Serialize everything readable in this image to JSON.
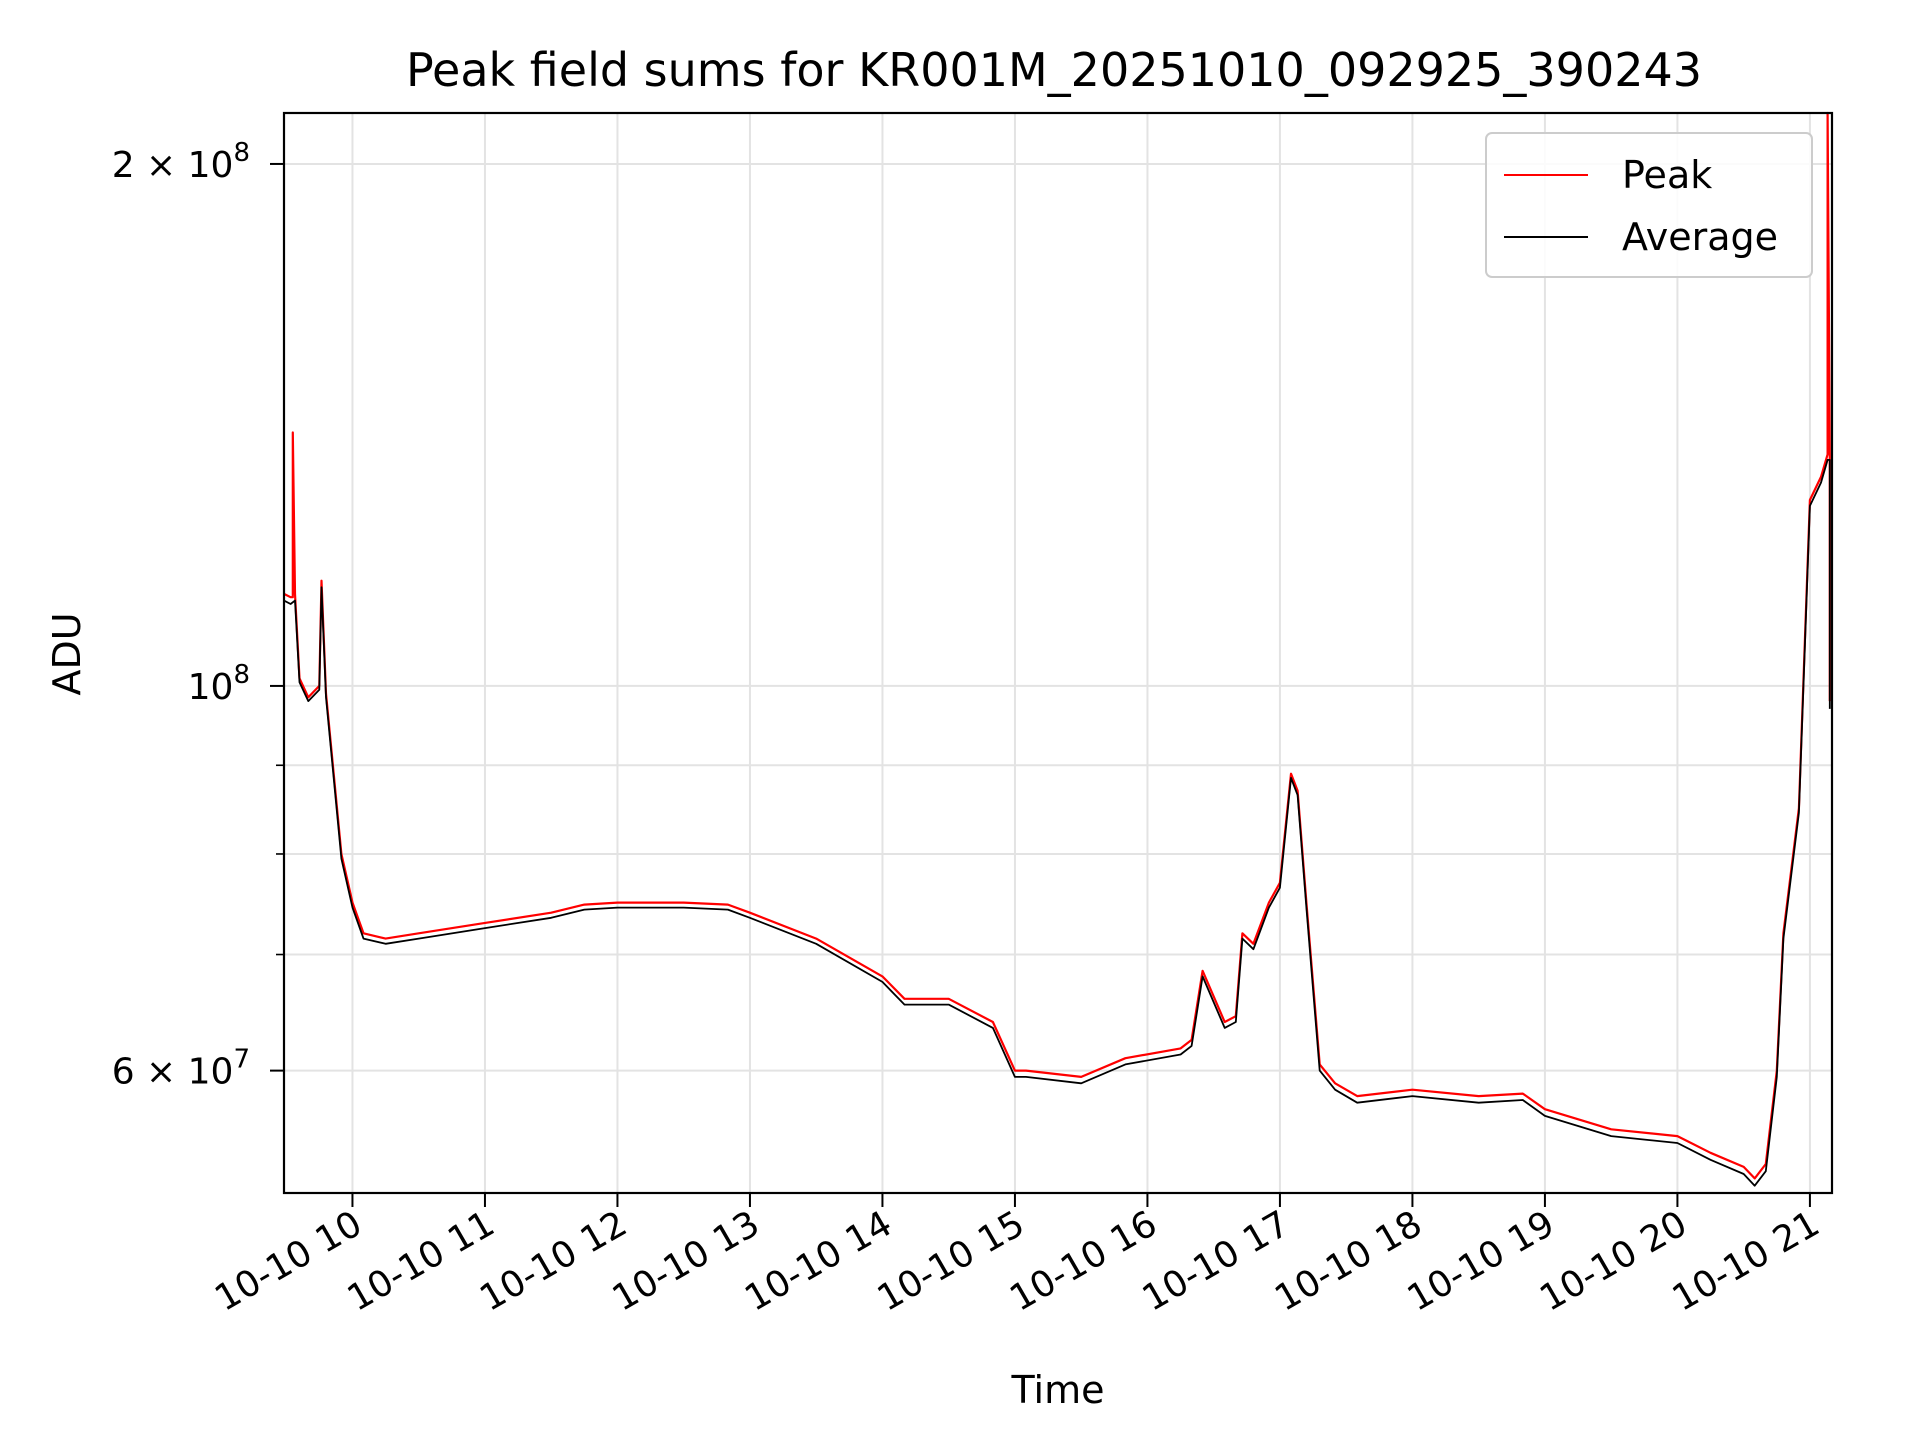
{
  "chart_data": {
    "type": "line",
    "title": "Peak field sums for KR001M_20251010_092925_390243",
    "xlabel": "Time",
    "ylabel": "ADU",
    "yscale": "log",
    "ylim": [
      51000000,
      214000000
    ],
    "xlim": [
      "2025-10-10 09:29",
      "2025-10-10 21:10"
    ],
    "grid": true,
    "legend": "top-right",
    "x_ticks": [
      {
        "value": "2025-10-10 10:00",
        "label": "10-10 10"
      },
      {
        "value": "2025-10-10 11:00",
        "label": "10-10 11"
      },
      {
        "value": "2025-10-10 12:00",
        "label": "10-10 12"
      },
      {
        "value": "2025-10-10 13:00",
        "label": "10-10 13"
      },
      {
        "value": "2025-10-10 14:00",
        "label": "10-10 14"
      },
      {
        "value": "2025-10-10 15:00",
        "label": "10-10 15"
      },
      {
        "value": "2025-10-10 16:00",
        "label": "10-10 16"
      },
      {
        "value": "2025-10-10 17:00",
        "label": "10-10 17"
      },
      {
        "value": "2025-10-10 18:00",
        "label": "10-10 18"
      },
      {
        "value": "2025-10-10 19:00",
        "label": "10-10 19"
      },
      {
        "value": "2025-10-10 20:00",
        "label": "10-10 20"
      },
      {
        "value": "2025-10-10 21:00",
        "label": "10-10 21"
      }
    ],
    "y_major_ticks": [
      {
        "value": 60000000,
        "base": "6 × 10",
        "exp": "7"
      },
      {
        "value": 100000000,
        "base": "10",
        "exp": "8"
      },
      {
        "value": 200000000,
        "base": "2 × 10",
        "exp": "8"
      }
    ],
    "y_minor_ticks": [
      70000000,
      80000000,
      90000000
    ],
    "series": [
      {
        "name": "Peak",
        "color": "#ff0000",
        "x": [
          "2025-10-10 09:29",
          "2025-10-10 09:32",
          "2025-10-10 09:33",
          "2025-10-10 09:33",
          "2025-10-10 09:34",
          "2025-10-10 09:36",
          "2025-10-10 09:40",
          "2025-10-10 09:45",
          "2025-10-10 09:46",
          "2025-10-10 09:48",
          "2025-10-10 09:55",
          "2025-10-10 10:00",
          "2025-10-10 10:05",
          "2025-10-10 10:15",
          "2025-10-10 10:30",
          "2025-10-10 11:00",
          "2025-10-10 11:30",
          "2025-10-10 11:45",
          "2025-10-10 12:00",
          "2025-10-10 12:30",
          "2025-10-10 12:50",
          "2025-10-10 13:00",
          "2025-10-10 13:30",
          "2025-10-10 14:00",
          "2025-10-10 14:10",
          "2025-10-10 14:30",
          "2025-10-10 14:50",
          "2025-10-10 15:00",
          "2025-10-10 15:05",
          "2025-10-10 15:30",
          "2025-10-10 15:50",
          "2025-10-10 16:15",
          "2025-10-10 16:20",
          "2025-10-10 16:25",
          "2025-10-10 16:35",
          "2025-10-10 16:40",
          "2025-10-10 16:43",
          "2025-10-10 16:48",
          "2025-10-10 16:55",
          "2025-10-10 17:00",
          "2025-10-10 17:05",
          "2025-10-10 17:08",
          "2025-10-10 17:12",
          "2025-10-10 17:18",
          "2025-10-10 17:25",
          "2025-10-10 17:35",
          "2025-10-10 18:00",
          "2025-10-10 18:30",
          "2025-10-10 18:50",
          "2025-10-10 19:00",
          "2025-10-10 19:30",
          "2025-10-10 20:00",
          "2025-10-10 20:15",
          "2025-10-10 20:30",
          "2025-10-10 20:35",
          "2025-10-10 20:40",
          "2025-10-10 20:45",
          "2025-10-10 20:48",
          "2025-10-10 20:55",
          "2025-10-10 21:00",
          "2025-10-10 21:05",
          "2025-10-10 21:08",
          "2025-10-10 21:08",
          "2025-10-10 21:09",
          "2025-10-10 21:09"
        ],
        "y": [
          113000000,
          112500000,
          112500000,
          140000000,
          113000000,
          101000000,
          98500000,
          100000000,
          115000000,
          99000000,
          80000000,
          75000000,
          72000000,
          71500000,
          72000000,
          73000000,
          74000000,
          74800000,
          75000000,
          75000000,
          74800000,
          74000000,
          71500000,
          68000000,
          66000000,
          66000000,
          64000000,
          60000000,
          60000000,
          59500000,
          61000000,
          61800000,
          62500000,
          68500000,
          64000000,
          64500000,
          72000000,
          71000000,
          75000000,
          77000000,
          89000000,
          87000000,
          75000000,
          60500000,
          59000000,
          58000000,
          58500000,
          58000000,
          58200000,
          57000000,
          55500000,
          55000000,
          53800000,
          52800000,
          52000000,
          53000000,
          60000000,
          72000000,
          85000000,
          128000000,
          132000000,
          136000000,
          214000000,
          136000000,
          98000000
        ]
      },
      {
        "name": "Average",
        "color": "#000000",
        "x": [
          "2025-10-10 09:29",
          "2025-10-10 09:32",
          "2025-10-10 09:34",
          "2025-10-10 09:36",
          "2025-10-10 09:40",
          "2025-10-10 09:45",
          "2025-10-10 09:46",
          "2025-10-10 09:48",
          "2025-10-10 09:55",
          "2025-10-10 10:00",
          "2025-10-10 10:05",
          "2025-10-10 10:15",
          "2025-10-10 10:30",
          "2025-10-10 11:00",
          "2025-10-10 11:30",
          "2025-10-10 11:45",
          "2025-10-10 12:00",
          "2025-10-10 12:30",
          "2025-10-10 12:50",
          "2025-10-10 13:00",
          "2025-10-10 13:30",
          "2025-10-10 14:00",
          "2025-10-10 14:10",
          "2025-10-10 14:30",
          "2025-10-10 14:50",
          "2025-10-10 15:00",
          "2025-10-10 15:05",
          "2025-10-10 15:30",
          "2025-10-10 15:50",
          "2025-10-10 16:15",
          "2025-10-10 16:20",
          "2025-10-10 16:25",
          "2025-10-10 16:35",
          "2025-10-10 16:40",
          "2025-10-10 16:43",
          "2025-10-10 16:48",
          "2025-10-10 16:55",
          "2025-10-10 17:00",
          "2025-10-10 17:05",
          "2025-10-10 17:08",
          "2025-10-10 17:12",
          "2025-10-10 17:18",
          "2025-10-10 17:25",
          "2025-10-10 17:35",
          "2025-10-10 18:00",
          "2025-10-10 18:30",
          "2025-10-10 18:50",
          "2025-10-10 19:00",
          "2025-10-10 19:30",
          "2025-10-10 20:00",
          "2025-10-10 20:15",
          "2025-10-10 20:30",
          "2025-10-10 20:35",
          "2025-10-10 20:40",
          "2025-10-10 20:45",
          "2025-10-10 20:48",
          "2025-10-10 20:55",
          "2025-10-10 21:00",
          "2025-10-10 21:05",
          "2025-10-10 21:08",
          "2025-10-10 21:09",
          "2025-10-10 21:09"
        ],
        "y": [
          112000000,
          111500000,
          112000000,
          100500000,
          98000000,
          99500000,
          114000000,
          98500000,
          79500000,
          74500000,
          71500000,
          71000000,
          71500000,
          72500000,
          73500000,
          74300000,
          74500000,
          74500000,
          74300000,
          73500000,
          71000000,
          67500000,
          65500000,
          65500000,
          63500000,
          59500000,
          59500000,
          59000000,
          60500000,
          61300000,
          62000000,
          68000000,
          63500000,
          64000000,
          71500000,
          70500000,
          74500000,
          76500000,
          88500000,
          86500000,
          74500000,
          60000000,
          58500000,
          57500000,
          58000000,
          57500000,
          57700000,
          56500000,
          55000000,
          54500000,
          53300000,
          52300000,
          51500000,
          52500000,
          59500000,
          71500000,
          84500000,
          127000000,
          131000000,
          135000000,
          135000000,
          97000000
        ]
      }
    ]
  }
}
